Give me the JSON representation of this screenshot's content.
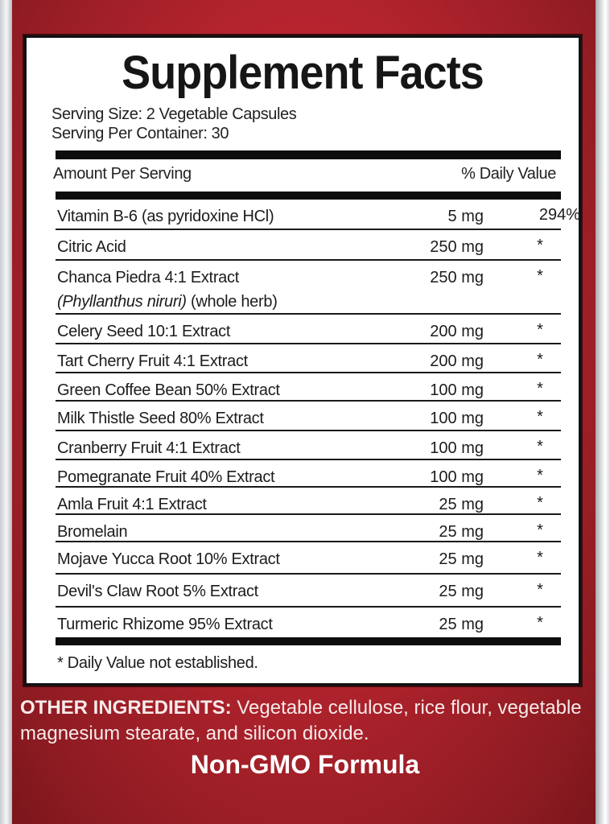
{
  "title": "Supplement Facts",
  "serving_size": "Serving Size: 2 Vegetable Capsules",
  "servings_per_container": "Serving Per Container: 30",
  "header": {
    "amount": "Amount Per Serving",
    "dv": "% Daily Value"
  },
  "ingredients": [
    {
      "name": "Vitamin B-6 (as pyridoxine HCl)",
      "amount": "5 mg",
      "dv": "294%"
    },
    {
      "name": "Citric Acid",
      "amount": "250 mg",
      "dv": "*"
    },
    {
      "name": "Chanca Piedra 4:1 Extract",
      "sub_italic": "(Phyllanthus niruri)",
      "sub_rest": " (whole herb)",
      "amount": "250 mg",
      "dv": "*"
    },
    {
      "name": "Celery Seed 10:1 Extract",
      "amount": "200 mg",
      "dv": "*"
    },
    {
      "name": "Tart Cherry Fruit 4:1 Extract",
      "amount": "200 mg",
      "dv": "*"
    },
    {
      "name": "Green Coffee Bean 50% Extract",
      "amount": "100 mg",
      "dv": "*"
    },
    {
      "name": "Milk Thistle Seed 80% Extract",
      "amount": "100 mg",
      "dv": "*"
    },
    {
      "name": "Cranberry Fruit 4:1 Extract",
      "amount": "100 mg",
      "dv": "*"
    },
    {
      "name": "Pomegranate Fruit 40% Extract",
      "amount": "100 mg",
      "dv": "*"
    },
    {
      "name": "Amla Fruit 4:1 Extract",
      "amount": "25 mg",
      "dv": "*"
    },
    {
      "name": "Bromelain",
      "amount": "25 mg",
      "dv": "*"
    },
    {
      "name": "Mojave Yucca Root 10% Extract",
      "amount": "25 mg",
      "dv": "*"
    },
    {
      "name": "Devil's Claw Root 5% Extract",
      "amount": "25 mg",
      "dv": "*"
    },
    {
      "name": "Turmeric Rhizome 95% Extract",
      "amount": "25 mg",
      "dv": "*"
    }
  ],
  "footnote": "* Daily Value not established.",
  "other_ingredients": {
    "label": "OTHER INGREDIENTS:",
    "text": " Vegetable cellulose, rice flour, vegetable magnesium stearate, and silicon dioxide."
  },
  "tagline": "Non-GMO Formula",
  "colors": {
    "background_red": "#b5242e",
    "panel": "#ffffff",
    "text": "#1c1c1c"
  }
}
